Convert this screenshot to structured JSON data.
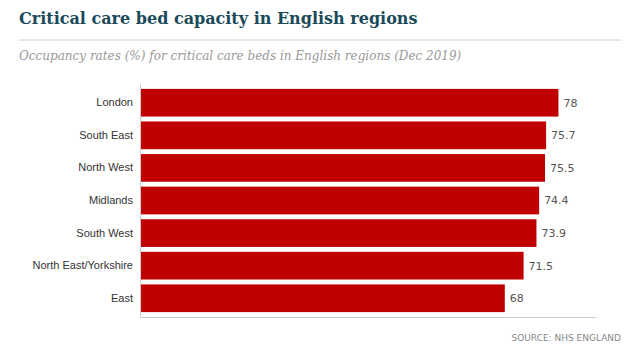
{
  "chart_data": {
    "type": "bar",
    "orientation": "horizontal",
    "title": "Critical care bed capacity in English regions",
    "subtitle": "Occupancy rates (%) for critical care beds in English regions (Dec 2019)",
    "source": "SOURCE: NHS ENGLAND",
    "categories": [
      "East",
      "North East/Yorkshire",
      "South West",
      "Midlands",
      "North West",
      "South East",
      "London"
    ],
    "values": [
      68,
      71.5,
      73.9,
      74.4,
      75.5,
      75.7,
      78
    ],
    "color": "#c00000",
    "xlim": [
      0,
      85
    ],
    "xticks": [],
    "tick_labels": "y",
    "data_labels": true,
    "grid": false
  }
}
